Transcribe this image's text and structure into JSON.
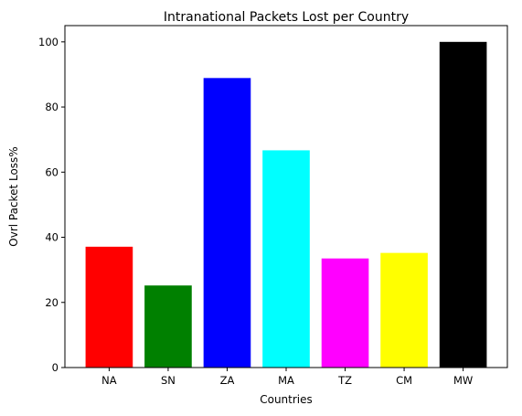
{
  "chart_data": {
    "type": "bar",
    "title": "Intranational Packets Lost per Country",
    "xlabel": "Countries",
    "ylabel": "Ovrl Packet Loss%",
    "categories": [
      "NA",
      "SN",
      "ZA",
      "MA",
      "TZ",
      "CM",
      "MW"
    ],
    "values": [
      37.1,
      25.2,
      88.9,
      66.7,
      33.5,
      35.2,
      100.0
    ],
    "colors": [
      "#ff0000",
      "#008000",
      "#0000ff",
      "#00ffff",
      "#ff00ff",
      "#ffff00",
      "#000000"
    ],
    "ylim": [
      0,
      105
    ],
    "yticks": [
      0,
      20,
      40,
      60,
      80,
      100
    ],
    "grid": false,
    "legend": "none"
  }
}
